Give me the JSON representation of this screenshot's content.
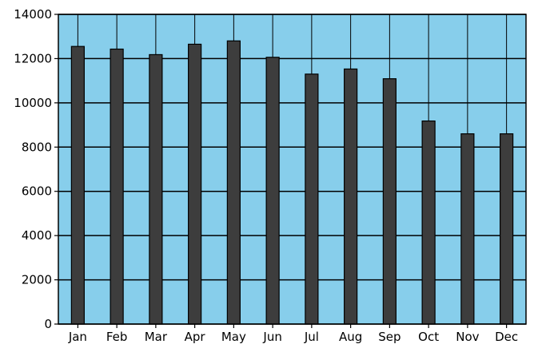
{
  "chart_data": {
    "type": "bar",
    "title": "",
    "xlabel": "",
    "ylabel": "",
    "categories": [
      "Jan",
      "Feb",
      "Mar",
      "Apr",
      "May",
      "Jun",
      "Jul",
      "Aug",
      "Sep",
      "Oct",
      "Nov",
      "Dec"
    ],
    "values": [
      12550,
      12430,
      12180,
      12650,
      12800,
      12060,
      11300,
      11530,
      11090,
      9180,
      8600,
      8600
    ],
    "ylim": [
      0,
      14000
    ],
    "yticks": [
      0,
      2000,
      4000,
      6000,
      8000,
      10000,
      12000,
      14000
    ],
    "ytick_labels": [
      "0",
      "2000",
      "4000",
      "6000",
      "8000",
      "10000",
      "12000",
      "14000"
    ],
    "grid": true,
    "legend": "none"
  },
  "colors": {
    "plot_background": "#87ceeb",
    "bar_fill": "#3d3d3d",
    "bar_edge": "#000000",
    "grid": "#000000",
    "axis": "#000000"
  }
}
